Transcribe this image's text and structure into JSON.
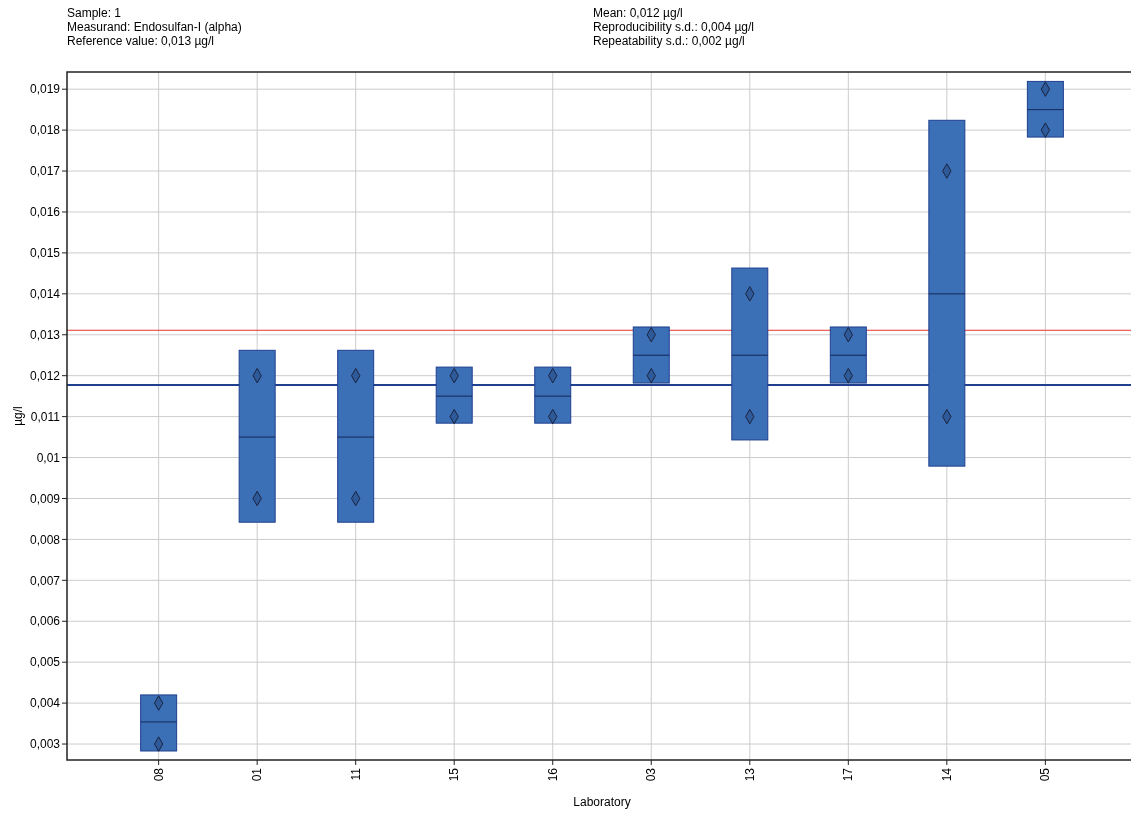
{
  "chart_data": {
    "type": "box",
    "annotations": [
      "Sample: 1",
      "Measurand: Endosulfan-I (alpha)",
      "Reference value: 0,013 µg/l",
      "Mean: 0,012 µg/l",
      "Reproducibility s.d.: 0,004 µg/l",
      "Repeatability s.d.: 0,002 µg/l"
    ],
    "xlabel": "Laboratory",
    "ylabel": "µg/l",
    "categories": [
      "08",
      "01",
      "11",
      "15",
      "16",
      "03",
      "13",
      "17",
      "14",
      "05"
    ],
    "series": [
      {
        "color": "#3b6fb6",
        "boxes": [
          {
            "low": 0.00283,
            "q1": 0.00283,
            "median": 0.00354,
            "q3": 0.0042,
            "high": 0.0042
          },
          {
            "low": 0.00842,
            "q1": 0.00842,
            "median": 0.0105,
            "q3": 0.01262,
            "high": 0.01262
          },
          {
            "low": 0.00842,
            "q1": 0.00842,
            "median": 0.0105,
            "q3": 0.01262,
            "high": 0.01262
          },
          {
            "low": 0.01084,
            "q1": 0.01084,
            "median": 0.0115,
            "q3": 0.01221,
            "high": 0.01221
          },
          {
            "low": 0.01084,
            "q1": 0.01084,
            "median": 0.0115,
            "q3": 0.01221,
            "high": 0.01221
          },
          {
            "low": 0.01182,
            "q1": 0.01182,
            "median": 0.0125,
            "q3": 0.01319,
            "high": 0.01319
          },
          {
            "low": 0.01043,
            "q1": 0.01043,
            "median": 0.0125,
            "q3": 0.01463,
            "high": 0.01463
          },
          {
            "low": 0.01182,
            "q1": 0.01182,
            "median": 0.0125,
            "q3": 0.01319,
            "high": 0.01319
          },
          {
            "low": 0.00979,
            "q1": 0.00979,
            "median": 0.014,
            "q3": 0.01824,
            "high": 0.01824
          },
          {
            "low": 0.01783,
            "q1": 0.01783,
            "median": 0.0185,
            "q3": 0.01919,
            "high": 0.01919
          }
        ]
      },
      {
        "type": "scatter",
        "color": "#2f5a9a",
        "marker": "diamond",
        "x": [
          "08",
          "08",
          "01",
          "01",
          "11",
          "11",
          "15",
          "15",
          "16",
          "16",
          "03",
          "03",
          "13",
          "13",
          "17",
          "17",
          "14",
          "14",
          "05",
          "05"
        ],
        "values": [
          0.004,
          0.003,
          0.012,
          0.009,
          0.012,
          0.009,
          0.012,
          0.011,
          0.012,
          0.011,
          0.013,
          0.012,
          0.014,
          0.011,
          0.013,
          0.012,
          0.017,
          0.011,
          0.019,
          0.018
        ]
      }
    ],
    "ref_lines": [
      {
        "axis": "y",
        "value": 0.01311,
        "color": "#e8322e"
      },
      {
        "axis": "y",
        "value": 0.01177,
        "color": "#1f3f8f"
      }
    ],
    "ylim": [
      0.00261,
      0.01942
    ],
    "yticks": [
      {
        "value": 0.003,
        "label": "0,003"
      },
      {
        "value": 0.004,
        "label": "0,004"
      },
      {
        "value": 0.005,
        "label": "0,005"
      },
      {
        "value": 0.006,
        "label": "0,006"
      },
      {
        "value": 0.007,
        "label": "0,007"
      },
      {
        "value": 0.008,
        "label": "0,008"
      },
      {
        "value": 0.009,
        "label": "0,009"
      },
      {
        "value": 0.01,
        "label": "0,01"
      },
      {
        "value": 0.011,
        "label": "0,011"
      },
      {
        "value": 0.012,
        "label": "0,012"
      },
      {
        "value": 0.013,
        "label": "0,013"
      },
      {
        "value": 0.014,
        "label": "0,014"
      },
      {
        "value": 0.015,
        "label": "0,015"
      },
      {
        "value": 0.016,
        "label": "0,016"
      },
      {
        "value": 0.017,
        "label": "0,017"
      },
      {
        "value": 0.018,
        "label": "0,018"
      },
      {
        "value": 0.019,
        "label": "0,019"
      }
    ],
    "grid": true
  }
}
